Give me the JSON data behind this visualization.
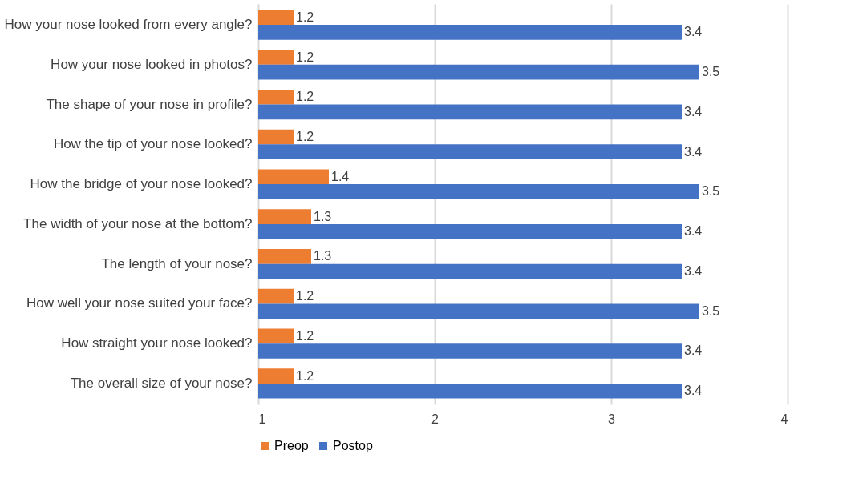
{
  "chart_data": {
    "type": "bar",
    "orientation": "horizontal",
    "categories": [
      "How your nose looked from every angle?",
      "How your nose looked in photos?",
      "The shape of your nose in profile?",
      "How the tip of your nose looked?",
      "How the bridge of your nose looked?",
      "The width of your nose at the bottom?",
      "The length of your nose?",
      "How well your nose suited your face?",
      "How straight your nose looked?",
      "The overall size of your nose?"
    ],
    "series": [
      {
        "name": "Preop",
        "color": "#ed7d31",
        "values": [
          1.2,
          1.2,
          1.2,
          1.2,
          1.4,
          1.3,
          1.3,
          1.2,
          1.2,
          1.2
        ]
      },
      {
        "name": "Postop",
        "color": "#4472c4",
        "values": [
          3.4,
          3.5,
          3.4,
          3.4,
          3.5,
          3.4,
          3.4,
          3.5,
          3.4,
          3.4
        ]
      }
    ],
    "xlim": [
      1,
      4
    ],
    "xticks": [
      1,
      2,
      3,
      4
    ],
    "grid": "x",
    "legend": "bottom",
    "data_labels": true
  }
}
